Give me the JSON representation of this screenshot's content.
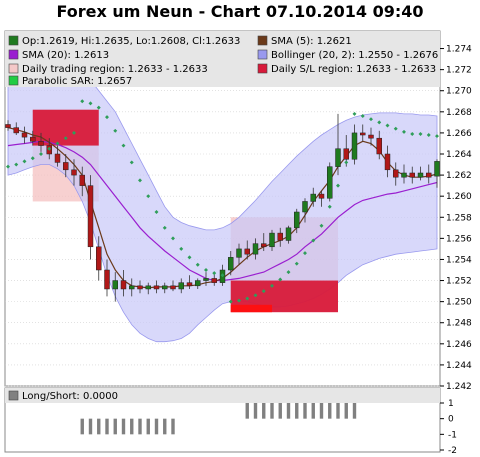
{
  "chart_title": "Forex um Neun - Chart 07.10.2014 09:40",
  "colors": {
    "frame_bg": "#e8e8e8",
    "plot_bg": "#ffffff",
    "grid": "#d0d0d0",
    "bollinger_fill": "#c8c8f8",
    "bollinger_stroke": "#9999ee",
    "sma5": "#6b3a1a",
    "sma20": "#9a1fd0",
    "sar": "#2f9e5a",
    "candle_up": "#1f7a1f",
    "candle_down": "#b01818",
    "trading_region": "#f4b8b8",
    "sl_region": "#d81a3a",
    "sl_region_bright": "#ff1010",
    "signal_bar": "#808080"
  },
  "legend": [
    {
      "label": "Op:1.2619, Hi:1.2635, Lo:1.2608, Cl:1.2633",
      "color": "#1f7a1f",
      "icon": "candle-swatch"
    },
    {
      "label": "SMA (5): 1.2621",
      "color": "#6b3a1a",
      "icon": "line-swatch"
    },
    {
      "label": "SMA (20): 1.2613",
      "color": "#9a1fd0",
      "icon": "line-swatch"
    },
    {
      "label": "Bollinger (20, 2): 1.2550 - 1.2676",
      "color": "#9999ee",
      "icon": "band-swatch"
    },
    {
      "label": "Daily trading region: 1.2633 - 1.2633",
      "color": "#f4c8c8",
      "icon": "region-swatch"
    },
    {
      "label": "Daily S/L region: 1.2633 - 1.2633",
      "color": "#d81a3a",
      "icon": "region-swatch"
    },
    {
      "label": "Parabolic SAR: 1.2657",
      "color": "#22cc44",
      "icon": "dot-swatch"
    }
  ],
  "sub_legend": {
    "label": "Long/Short: 0.0000",
    "color": "#808080"
  },
  "chart_data": {
    "type": "candlestick",
    "title": "Forex um Neun - Chart 07.10.2014 09:40",
    "ylim": [
      1.242,
      1.275
    ],
    "y_ticks": [
      "1.242",
      "1.244",
      "1.246",
      "1.248",
      "1.250",
      "1.252",
      "1.254",
      "1.256",
      "1.258",
      "1.260",
      "1.262",
      "1.264",
      "1.266",
      "1.268",
      "1.270",
      "1.272",
      "1.274"
    ],
    "grid": true,
    "candles": [
      {
        "o": 1.2668,
        "h": 1.2672,
        "l": 1.2662,
        "c": 1.2665
      },
      {
        "o": 1.2665,
        "h": 1.267,
        "l": 1.2658,
        "c": 1.266
      },
      {
        "o": 1.266,
        "h": 1.2666,
        "l": 1.265,
        "c": 1.2656
      },
      {
        "o": 1.2656,
        "h": 1.2662,
        "l": 1.2648,
        "c": 1.2652
      },
      {
        "o": 1.2652,
        "h": 1.266,
        "l": 1.2642,
        "c": 1.2648
      },
      {
        "o": 1.2648,
        "h": 1.2655,
        "l": 1.2635,
        "c": 1.264
      },
      {
        "o": 1.264,
        "h": 1.2648,
        "l": 1.2628,
        "c": 1.2632
      },
      {
        "o": 1.2632,
        "h": 1.264,
        "l": 1.2618,
        "c": 1.2625
      },
      {
        "o": 1.2625,
        "h": 1.2635,
        "l": 1.261,
        "c": 1.262
      },
      {
        "o": 1.262,
        "h": 1.2628,
        "l": 1.26,
        "c": 1.261
      },
      {
        "o": 1.261,
        "h": 1.262,
        "l": 1.254,
        "c": 1.2552
      },
      {
        "o": 1.2552,
        "h": 1.2562,
        "l": 1.252,
        "c": 1.253
      },
      {
        "o": 1.253,
        "h": 1.254,
        "l": 1.2505,
        "c": 1.2512
      },
      {
        "o": 1.2512,
        "h": 1.2528,
        "l": 1.25,
        "c": 1.252
      },
      {
        "o": 1.252,
        "h": 1.253,
        "l": 1.2505,
        "c": 1.2512
      },
      {
        "o": 1.2512,
        "h": 1.2522,
        "l": 1.2505,
        "c": 1.2515
      },
      {
        "o": 1.2515,
        "h": 1.252,
        "l": 1.2508,
        "c": 1.2512
      },
      {
        "o": 1.2512,
        "h": 1.2518,
        "l": 1.2507,
        "c": 1.2515
      },
      {
        "o": 1.2515,
        "h": 1.252,
        "l": 1.2508,
        "c": 1.2512
      },
      {
        "o": 1.2512,
        "h": 1.2518,
        "l": 1.2508,
        "c": 1.2515
      },
      {
        "o": 1.2515,
        "h": 1.252,
        "l": 1.251,
        "c": 1.2512
      },
      {
        "o": 1.2512,
        "h": 1.2522,
        "l": 1.2508,
        "c": 1.2518
      },
      {
        "o": 1.2518,
        "h": 1.2525,
        "l": 1.2512,
        "c": 1.2515
      },
      {
        "o": 1.2515,
        "h": 1.2522,
        "l": 1.2512,
        "c": 1.252
      },
      {
        "o": 1.252,
        "h": 1.2528,
        "l": 1.2515,
        "c": 1.2522
      },
      {
        "o": 1.2522,
        "h": 1.2528,
        "l": 1.2515,
        "c": 1.2518
      },
      {
        "o": 1.2518,
        "h": 1.2535,
        "l": 1.2515,
        "c": 1.253
      },
      {
        "o": 1.253,
        "h": 1.2548,
        "l": 1.2525,
        "c": 1.2542
      },
      {
        "o": 1.2542,
        "h": 1.2555,
        "l": 1.2535,
        "c": 1.255
      },
      {
        "o": 1.255,
        "h": 1.2558,
        "l": 1.254,
        "c": 1.2545
      },
      {
        "o": 1.2545,
        "h": 1.256,
        "l": 1.254,
        "c": 1.2555
      },
      {
        "o": 1.2555,
        "h": 1.2565,
        "l": 1.2548,
        "c": 1.2552
      },
      {
        "o": 1.2552,
        "h": 1.2568,
        "l": 1.2548,
        "c": 1.2565
      },
      {
        "o": 1.2565,
        "h": 1.257,
        "l": 1.2552,
        "c": 1.2558
      },
      {
        "o": 1.2558,
        "h": 1.2572,
        "l": 1.2555,
        "c": 1.257
      },
      {
        "o": 1.257,
        "h": 1.2588,
        "l": 1.2565,
        "c": 1.2585
      },
      {
        "o": 1.2585,
        "h": 1.2598,
        "l": 1.2575,
        "c": 1.2595
      },
      {
        "o": 1.2595,
        "h": 1.2608,
        "l": 1.259,
        "c": 1.2602
      },
      {
        "o": 1.2602,
        "h": 1.2605,
        "l": 1.259,
        "c": 1.2598
      },
      {
        "o": 1.2598,
        "h": 1.2632,
        "l": 1.2595,
        "c": 1.2628
      },
      {
        "o": 1.2628,
        "h": 1.2678,
        "l": 1.262,
        "c": 1.2645
      },
      {
        "o": 1.2645,
        "h": 1.2658,
        "l": 1.2628,
        "c": 1.2635
      },
      {
        "o": 1.2635,
        "h": 1.2668,
        "l": 1.263,
        "c": 1.266
      },
      {
        "o": 1.266,
        "h": 1.2668,
        "l": 1.2652,
        "c": 1.2658
      },
      {
        "o": 1.2658,
        "h": 1.2665,
        "l": 1.2648,
        "c": 1.2655
      },
      {
        "o": 1.2655,
        "h": 1.2662,
        "l": 1.2635,
        "c": 1.264
      },
      {
        "o": 1.264,
        "h": 1.2648,
        "l": 1.2618,
        "c": 1.2625
      },
      {
        "o": 1.2625,
        "h": 1.2632,
        "l": 1.261,
        "c": 1.2618
      },
      {
        "o": 1.2618,
        "h": 1.263,
        "l": 1.2612,
        "c": 1.2622
      },
      {
        "o": 1.2622,
        "h": 1.2628,
        "l": 1.2612,
        "c": 1.2618
      },
      {
        "o": 1.2618,
        "h": 1.2628,
        "l": 1.2615,
        "c": 1.2622
      },
      {
        "o": 1.2622,
        "h": 1.263,
        "l": 1.2612,
        "c": 1.2618
      },
      {
        "o": 1.2619,
        "h": 1.2635,
        "l": 1.2608,
        "c": 1.2633
      }
    ],
    "sma5": [
      1.2665,
      1.2663,
      1.2661,
      1.2658,
      1.2656,
      1.2651,
      1.2645,
      1.2638,
      1.263,
      1.262,
      1.2595,
      1.257,
      1.2545,
      1.253,
      1.252,
      1.2515,
      1.2514,
      1.2513,
      1.2514,
      1.2514,
      1.2514,
      1.2515,
      1.2515,
      1.2516,
      1.2518,
      1.2519,
      1.2522,
      1.2528,
      1.2535,
      1.2542,
      1.2548,
      1.2552,
      1.2555,
      1.2558,
      1.2562,
      1.257,
      1.2582,
      1.2595,
      1.2605,
      1.2615,
      1.2628,
      1.2638,
      1.2648,
      1.2652,
      1.265,
      1.2643,
      1.2632,
      1.2624,
      1.262,
      1.2618,
      1.2618,
      1.2619,
      1.2621
    ],
    "sma20": [
      1.2648,
      1.2649,
      1.265,
      1.2651,
      1.2652,
      1.2651,
      1.2649,
      1.2646,
      1.2642,
      1.2637,
      1.263,
      1.262,
      1.261,
      1.26,
      1.259,
      1.258,
      1.257,
      1.2562,
      1.2555,
      1.2548,
      1.2542,
      1.2536,
      1.253,
      1.2526,
      1.2522,
      1.252,
      1.252,
      1.2521,
      1.2522,
      1.2524,
      1.2526,
      1.2528,
      1.2532,
      1.2536,
      1.254,
      1.2545,
      1.2552,
      1.2558,
      1.2564,
      1.2572,
      1.258,
      1.2586,
      1.2592,
      1.2596,
      1.2598,
      1.26,
      1.2602,
      1.2603,
      1.2605,
      1.2607,
      1.2609,
      1.2611,
      1.2613
    ],
    "bollinger_upper": [
      1.2705,
      1.2712,
      1.2718,
      1.2722,
      1.2725,
      1.2726,
      1.2726,
      1.2725,
      1.2722,
      1.2718,
      1.271,
      1.27,
      1.269,
      1.268,
      1.2665,
      1.265,
      1.2635,
      1.262,
      1.2605,
      1.259,
      1.258,
      1.2575,
      1.2572,
      1.257,
      1.2568,
      1.2568,
      1.257,
      1.2574,
      1.258,
      1.2588,
      1.2596,
      1.2605,
      1.2614,
      1.2622,
      1.263,
      1.2638,
      1.2645,
      1.2652,
      1.2658,
      1.2663,
      1.2668,
      1.2672,
      1.2675,
      1.2677,
      1.2678,
      1.2679,
      1.2679,
      1.2679,
      1.2678,
      1.2678,
      1.2677,
      1.2677,
      1.2676
    ],
    "bollinger_lower": [
      1.262,
      1.2622,
      1.2625,
      1.2628,
      1.263,
      1.263,
      1.2626,
      1.262,
      1.261,
      1.2595,
      1.2575,
      1.255,
      1.2525,
      1.2505,
      1.249,
      1.2478,
      1.247,
      1.2465,
      1.2462,
      1.2462,
      1.2463,
      1.2465,
      1.247,
      1.2478,
      1.2485,
      1.2492,
      1.2498,
      1.25,
      1.2501,
      1.25,
      1.2498,
      1.2496,
      1.2495,
      1.2495,
      1.2496,
      1.2498,
      1.25,
      1.2503,
      1.2507,
      1.2512,
      1.2518,
      1.2525,
      1.253,
      1.2535,
      1.2538,
      1.2541,
      1.2543,
      1.2545,
      1.2546,
      1.2547,
      1.2548,
      1.2549,
      1.255
    ],
    "parabolic_sar": [
      1.2628,
      1.263,
      1.2633,
      1.2636,
      1.264,
      1.2645,
      1.265,
      1.2655,
      1.266,
      1.269,
      1.2688,
      1.2684,
      1.2675,
      1.2662,
      1.2648,
      1.2632,
      1.2615,
      1.26,
      1.2585,
      1.257,
      1.256,
      1.255,
      1.2542,
      1.2535,
      1.253,
      1.2527,
      1.2525,
      1.25,
      1.2501,
      1.2503,
      1.2506,
      1.251,
      1.2515,
      1.2521,
      1.2528,
      1.2536,
      1.2546,
      1.2558,
      1.2572,
      1.259,
      1.261,
      1.2632,
      1.2678,
      1.2676,
      1.2673,
      1.267,
      1.2667,
      1.2664,
      1.2661,
      1.2659,
      1.2659,
      1.2658,
      1.2657
    ],
    "regions": [
      {
        "name": "Daily trading region 1",
        "from_index": 3,
        "to_index": 11,
        "y_from": 1.2595,
        "y_to": 1.2682,
        "color": "#f4c0c0"
      },
      {
        "name": "Daily S/L region 1",
        "from_index": 3,
        "to_index": 11,
        "y_from": 1.2648,
        "y_to": 1.2682,
        "color": "#d81a3a"
      },
      {
        "name": "Daily trading region 2",
        "from_index": 27,
        "to_index": 40,
        "y_from": 1.249,
        "y_to": 1.258,
        "color": "#f4c0c0"
      },
      {
        "name": "Daily S/L region 2",
        "from_index": 27,
        "to_index": 40,
        "y_from": 1.249,
        "y_to": 1.252,
        "color": "#d81a3a"
      },
      {
        "name": "Daily S/L region 2 lower",
        "from_index": 27,
        "to_index": 32,
        "y_from": 1.249,
        "y_to": 1.2497,
        "color": "#ff1010"
      }
    ],
    "long_short": {
      "ylim": [
        -2,
        1
      ],
      "y_ticks": [
        "1",
        "0",
        "-1",
        "-2"
      ],
      "label": "Long/Short: 0.0000",
      "bars": [
        {
          "from_index": 9,
          "to_index": 20,
          "value": -1
        },
        {
          "from_index": 29,
          "to_index": 42,
          "value": 1
        }
      ]
    }
  }
}
